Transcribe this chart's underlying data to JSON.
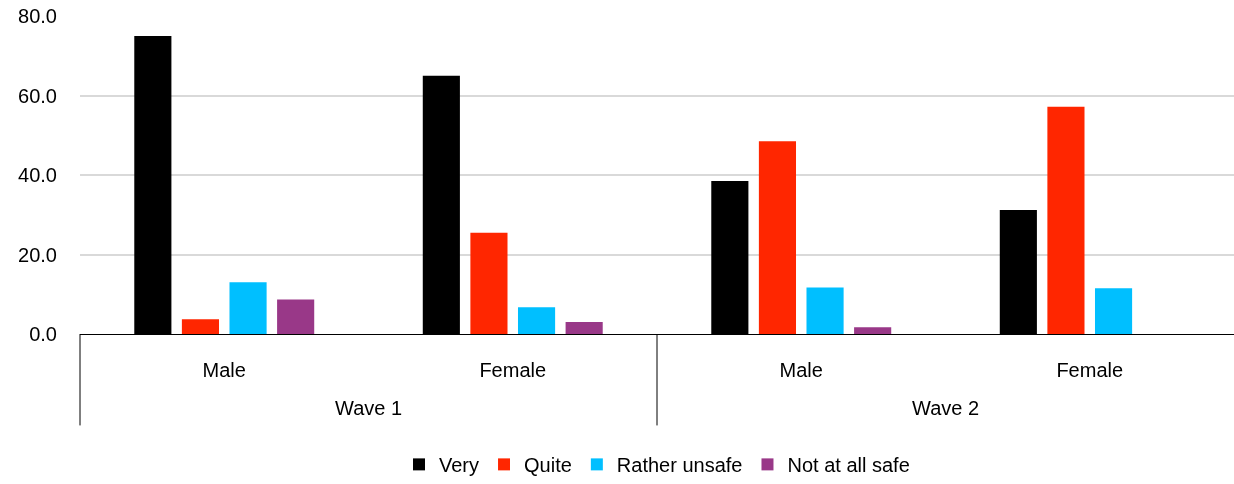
{
  "chart_data": {
    "type": "bar",
    "categories": [
      "Male",
      "Female",
      "Male",
      "Female"
    ],
    "annotations": [
      "Wave 1",
      "Wave 2"
    ],
    "series": [
      {
        "name": "Very",
        "color": "#000000",
        "values": [
          75.0,
          65.0,
          38.5,
          31.2
        ]
      },
      {
        "name": "Quite",
        "color": "#ff2600",
        "values": [
          3.7,
          25.5,
          48.5,
          57.2
        ]
      },
      {
        "name": "Rather unsafe",
        "color": "#00bfff",
        "values": [
          13.0,
          6.7,
          11.7,
          11.5
        ]
      },
      {
        "name": "Not at all safe",
        "color": "#993888",
        "values": [
          8.7,
          3.0,
          1.7,
          null
        ]
      }
    ],
    "ylim": [
      0,
      80
    ],
    "yticks": [
      {
        "value": 0,
        "label": "0.0"
      },
      {
        "value": 20,
        "label": "20.0"
      },
      {
        "value": 40,
        "label": "40.0"
      },
      {
        "value": 60,
        "label": "60.0"
      },
      {
        "value": 80,
        "label": "80.0"
      }
    ],
    "grid": "y",
    "legend": "bottom"
  }
}
